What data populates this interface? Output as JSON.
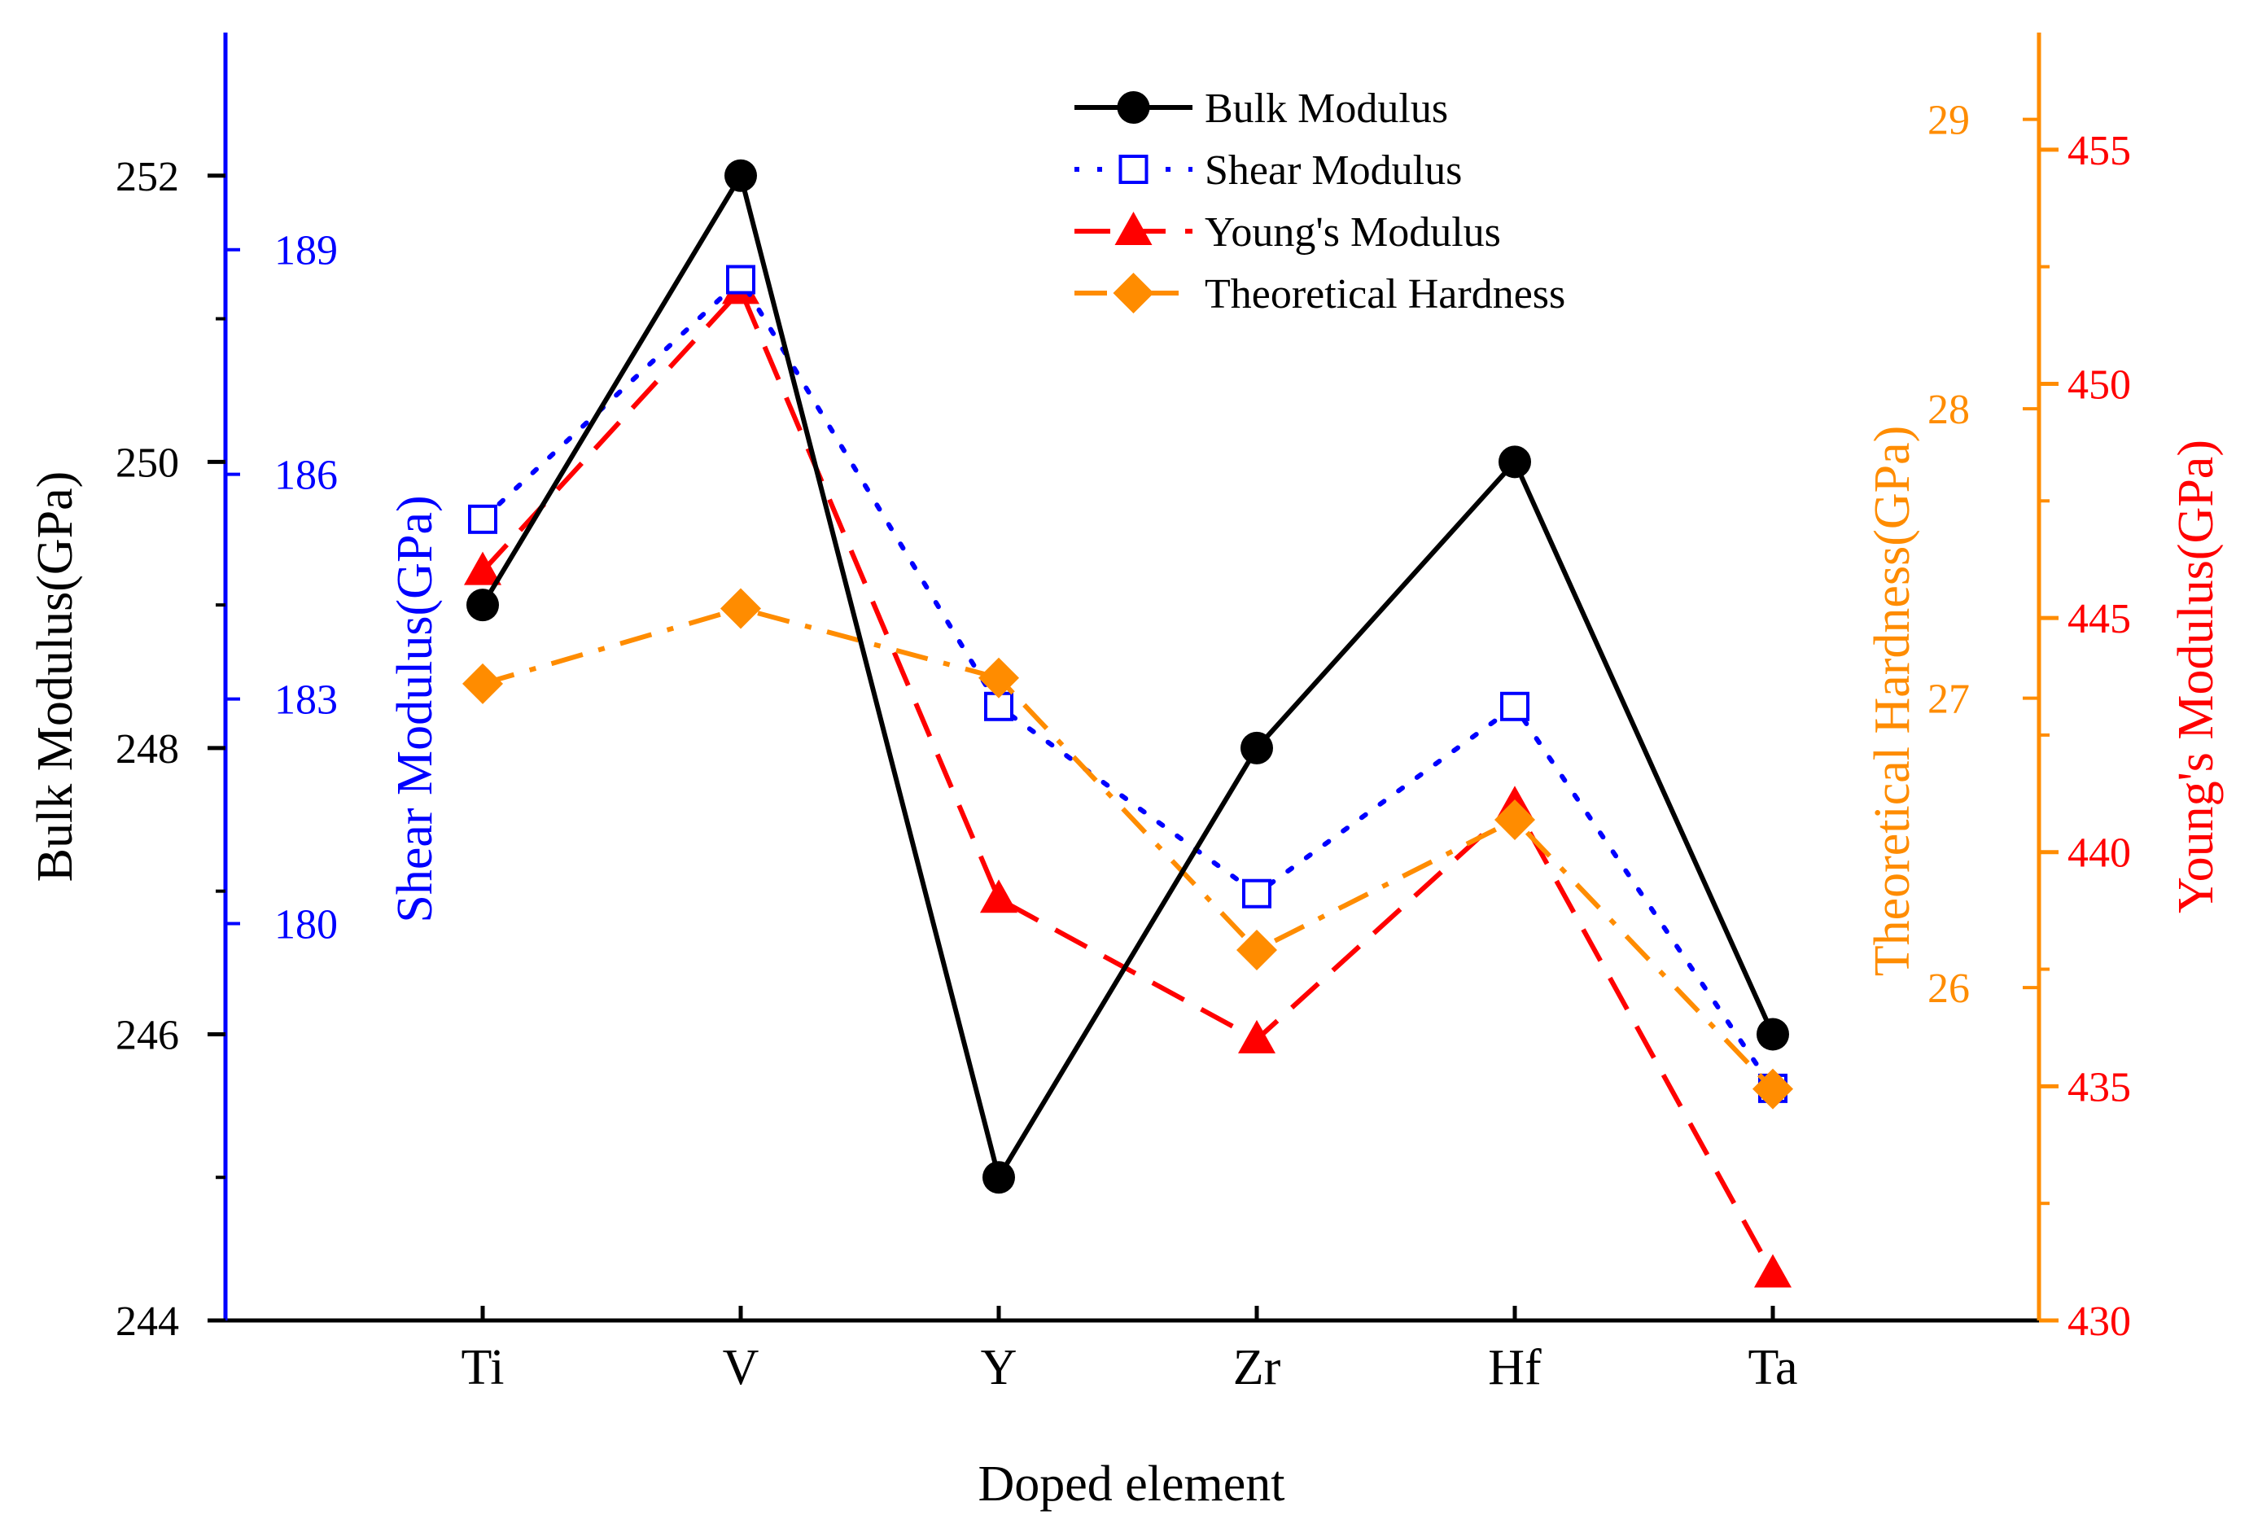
{
  "chart_data": {
    "type": "line",
    "categories": [
      "Ti",
      "V",
      "Y",
      "Zr",
      "Hf",
      "Ta"
    ],
    "xlabel": "Doped element",
    "axes": {
      "bulk": {
        "label": "Bulk Modulus(GPa)",
        "range": [
          244,
          253
        ],
        "ticks": [
          244,
          246,
          248,
          250,
          252
        ],
        "color": "#000000"
      },
      "shear": {
        "label": "Shear Modulus(GPa)",
        "range": [
          174.7,
          191.9
        ],
        "ticks": [
          180,
          183,
          186,
          189
        ],
        "color": "#0000ff"
      },
      "hardness": {
        "label": "Theoretical Hardness(GPa)",
        "range": [
          24.85,
          29.3
        ],
        "ticks": [
          26,
          27,
          28,
          29
        ],
        "color": "#ff8c00"
      },
      "young": {
        "label": "Young's Modulus(GPa)",
        "range": [
          430,
          457.5
        ],
        "ticks": [
          430,
          435,
          440,
          445,
          450,
          455
        ],
        "color": "#ff0000"
      }
    },
    "series": [
      {
        "name": "Bulk Modulus",
        "axis": "bulk",
        "values": [
          249,
          252,
          245,
          248,
          250,
          246
        ],
        "color": "#000000",
        "marker": "circle",
        "dash": "solid"
      },
      {
        "name": "Shear Modulus",
        "axis": "shear",
        "values": [
          185.4,
          188.6,
          182.9,
          180.4,
          182.9,
          177.8
        ],
        "color": "#0000ff",
        "marker": "open-square",
        "dash": "dot"
      },
      {
        "name": "Young's Modulus",
        "axis": "young",
        "values": [
          446,
          452,
          439,
          436,
          441,
          431
        ],
        "color": "#ff0000",
        "marker": "triangle",
        "dash": "dash"
      },
      {
        "name": "Theoretical Hardness",
        "axis": "hardness",
        "values": [
          27.05,
          27.31,
          27.07,
          26.13,
          26.58,
          25.65
        ],
        "color": "#ff8c00",
        "marker": "diamond",
        "dash": "dashdot"
      }
    ],
    "legend_position": "top-center",
    "grid": false
  }
}
